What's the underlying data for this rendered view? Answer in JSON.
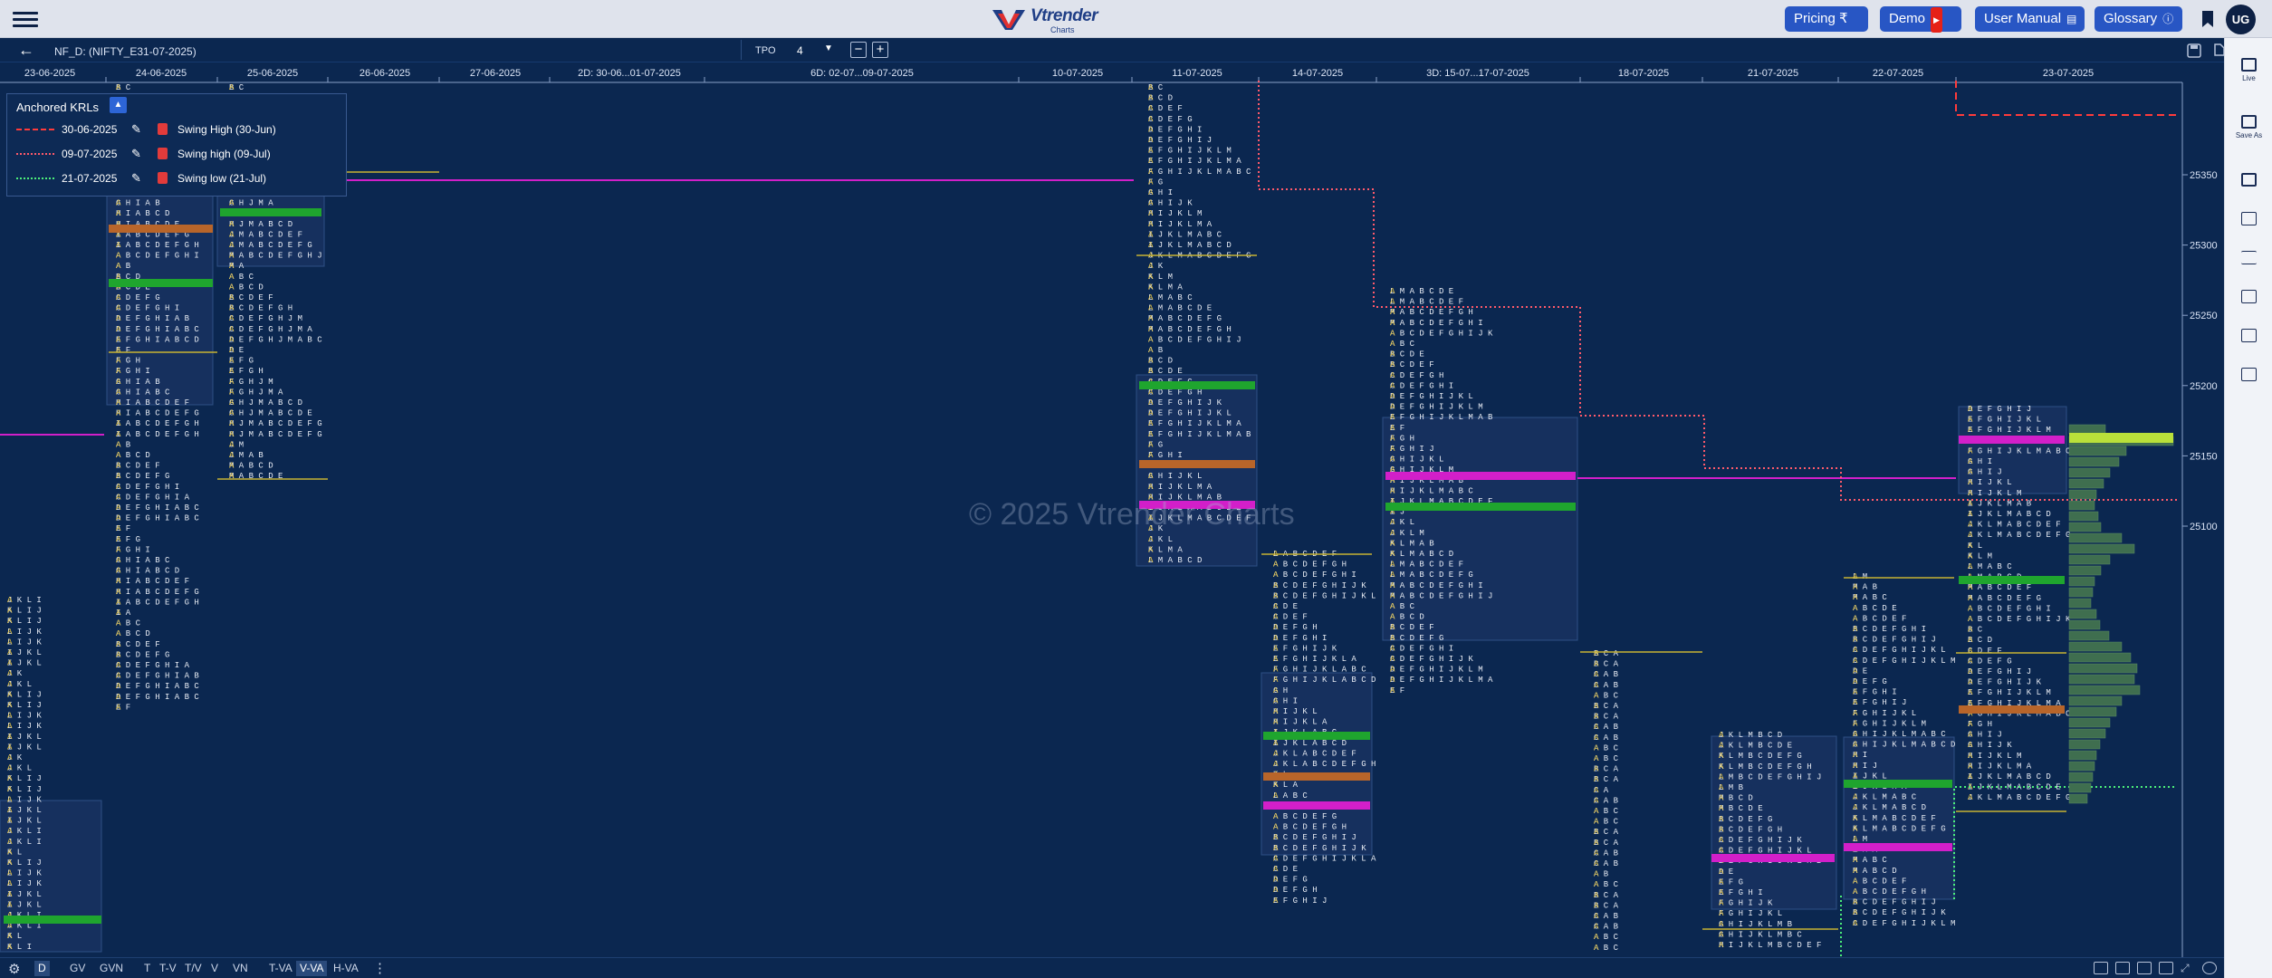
{
  "header": {
    "logo_text": "Vtrender",
    "logo_sub": "Charts",
    "buttons": {
      "pricing": "Pricing ₹",
      "demo": "Demo",
      "user_manual": "User Manual",
      "glossary": "Glossary"
    },
    "avatar": "UG"
  },
  "toolbar": {
    "symbol": "NF_D: (NIFTY_E31-07-2025)",
    "tpo_label": "TPO",
    "tpo_value": "4"
  },
  "watermark": "© 2025 Vtrender Charts",
  "dates": [
    "23-06-2025",
    "24-06-2025",
    "25-06-2025",
    "26-06-2025",
    "27-06-2025",
    "2D: 30-06...01-07-2025",
    "6D: 02-07...09-07-2025",
    "10-07-2025",
    "11-07-2025",
    "14-07-2025",
    "3D: 15-07...17-07-2025",
    "18-07-2025",
    "21-07-2025",
    "22-07-2025",
    "23-07-2025"
  ],
  "price_axis": [
    "25350",
    "25300",
    "25250",
    "25200",
    "25150",
    "25100"
  ],
  "krl": {
    "title": "Anchored KRLs",
    "rows": [
      {
        "date": "30-06-2025",
        "name": "Swing High (30-Jun)",
        "color": "#ff3b3b",
        "style": "dashed"
      },
      {
        "date": "09-07-2025",
        "name": "Swing high (09-Jul)",
        "color": "#ff5a6a",
        "style": "dotted"
      },
      {
        "date": "21-07-2025",
        "name": "Swing low (21-Jul)",
        "color": "#4cf07a",
        "style": "dotted"
      }
    ]
  },
  "footer": {
    "left": [
      "D",
      "GV",
      "GVN"
    ],
    "mid": [
      "T",
      "T-V",
      "T/V",
      "V",
      "VN"
    ],
    "right": [
      "T-VA",
      "V-VA",
      "H-VA"
    ],
    "active": [
      "D",
      "V-VA"
    ]
  },
  "sidebar": [
    {
      "label": "Live",
      "icon": "live-icon"
    },
    {
      "label": "Save As",
      "icon": "save-as-icon"
    },
    {
      "label": "",
      "icon": "square-icon"
    },
    {
      "label": "",
      "icon": "list-icon"
    },
    {
      "label": "",
      "icon": "lines-icon"
    },
    {
      "label": "",
      "icon": "grid-icon"
    },
    {
      "label": "",
      "icon": "columns-icon"
    },
    {
      "label": "",
      "icon": "layout-icon"
    }
  ],
  "colors": {
    "background": "#0b2750",
    "accent": "#2856c4",
    "tpo_yellow": "#e8c84a",
    "tpo_white": "#e6eaf2",
    "poc": "#d21fc9",
    "ib_green": "#1fa52e",
    "va_brown": "#b8652a"
  },
  "chart_data": [
    {
      "type": "table",
      "title": "",
      "subtitle": "",
      "xlabel": "",
      "ylabel": "",
      "categories": [
        "23-06-2025",
        "24-06-2025",
        "25-06-2025",
        "26-06-2025",
        "27-06-2025",
        "2D: 30-06...01-07-2025",
        "6D: 02-07...09-07-2025",
        "10-07-2025",
        "11-07-2025",
        "14-07-2025",
        "3D: 15-07...17-07-2025",
        "18-07-2025",
        "21-07-2025",
        "22-07-2025",
        "23-07-2025"
      ],
      "y_ticks": [
        25350,
        25300,
        25250,
        25200,
        25150,
        25100
      ],
      "ylim": [
        25060,
        25390
      ],
      "grid": false,
      "legend": "top-left"
    }
  ]
}
